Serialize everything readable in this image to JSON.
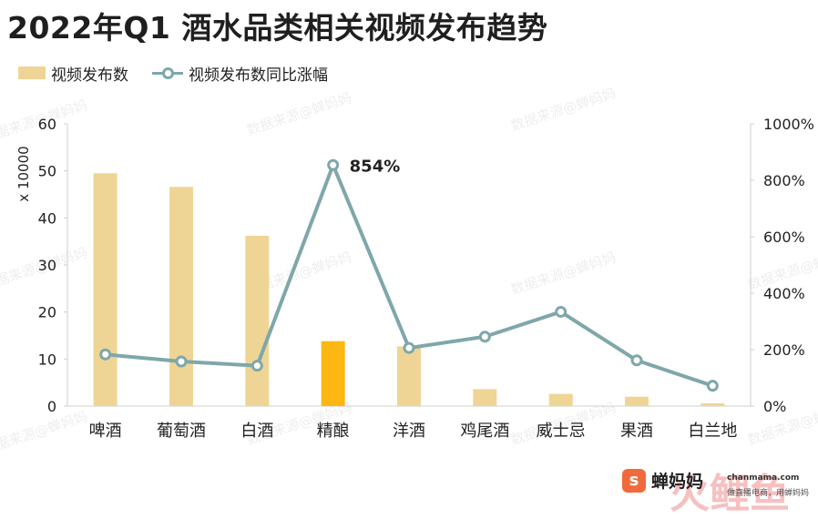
{
  "title": "2022年Q1 酒水品类相关视频发布趋势",
  "legend": {
    "bar_label": "视频发布数",
    "line_label": "视频发布数同比涨幅"
  },
  "watermark_text": "数据来源@蝉妈妈",
  "brand": {
    "name": "蝉妈妈",
    "logo_char": "s",
    "url": "chanmama.com",
    "slogan": "做直播电商，用蝉妈妈"
  },
  "colors": {
    "bar": "#efd595",
    "bar_highlight": "#fcb713",
    "line": "#7fa7aa",
    "axis": "#cfcfcf",
    "text": "#222222"
  },
  "chart_data": {
    "type": "bar",
    "title": "2022年Q1 酒水品类相关视频发布趋势",
    "categories": [
      "啤酒",
      "葡萄酒",
      "白酒",
      "精酿",
      "洋酒",
      "鸡尾酒",
      "威士忌",
      "果酒",
      "白兰地"
    ],
    "ylabel": "x 10000",
    "ylim": [
      0,
      60
    ],
    "yticks": [
      "0",
      "10",
      "20",
      "30",
      "40",
      "50",
      "60"
    ],
    "y2lim": [
      0,
      1000
    ],
    "y2ticks": [
      "0%",
      "200%",
      "400%",
      "600%",
      "800%",
      "1000%"
    ],
    "grid": false,
    "legend_position": "top-left",
    "highlight_category": "精酿",
    "series": [
      {
        "name": "视频发布数",
        "type": "bar",
        "axis": "left",
        "values": [
          49.5,
          46.6,
          36.2,
          13.8,
          12.7,
          3.6,
          2.6,
          2.0,
          0.6
        ]
      },
      {
        "name": "视频发布数同比涨幅",
        "type": "line",
        "axis": "right",
        "values": [
          183,
          158,
          143,
          854,
          206,
          246,
          334,
          162,
          72
        ]
      }
    ],
    "annotations": [
      {
        "category": "精酿",
        "series": "视频发布数同比涨幅",
        "text": "854%"
      }
    ]
  }
}
